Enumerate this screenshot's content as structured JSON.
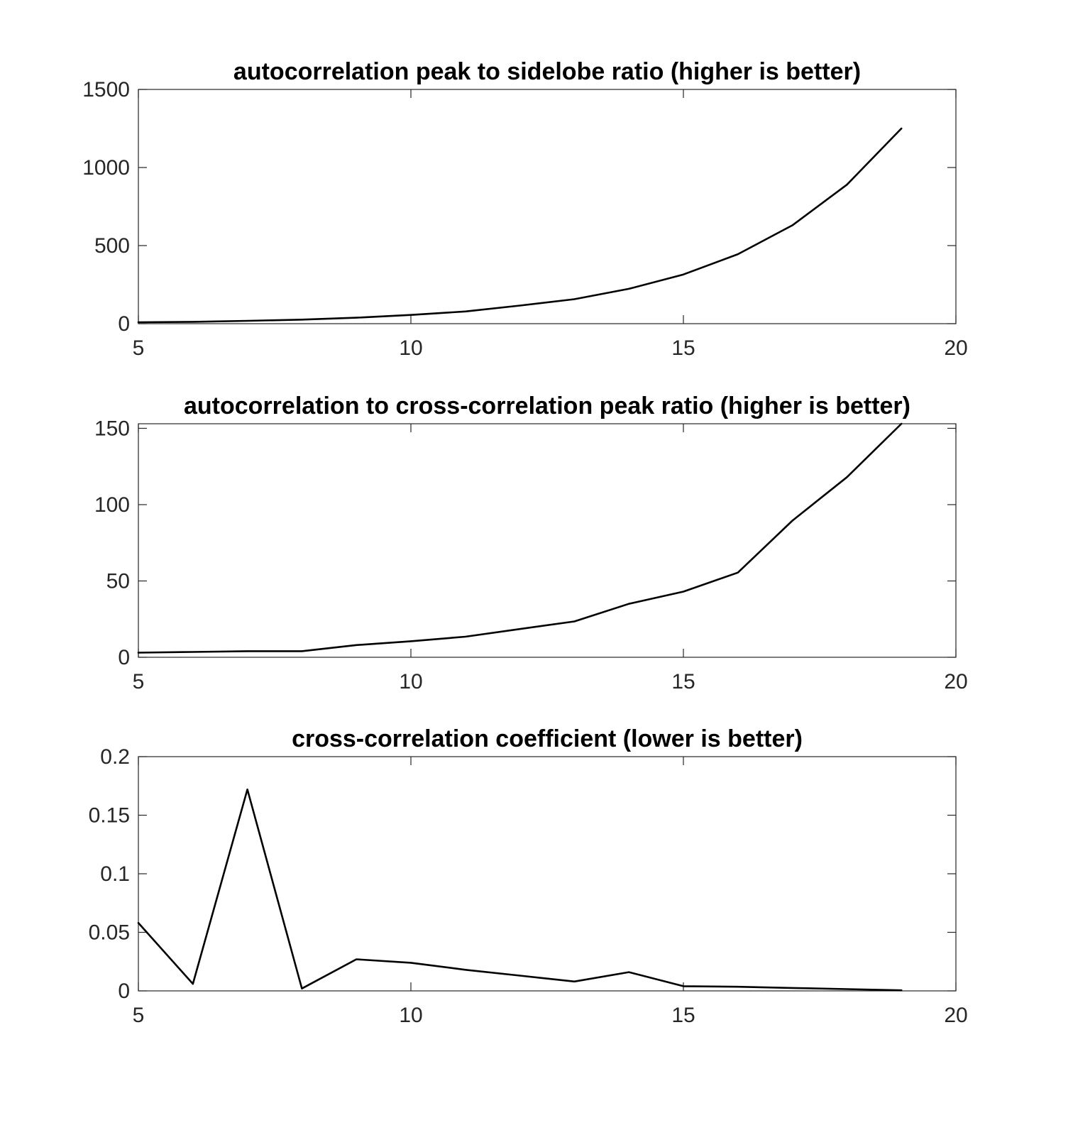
{
  "chart_data": [
    {
      "type": "line",
      "title": "autocorrelation peak to sidelobe ratio (higher is better)",
      "xlabel": "",
      "ylabel": "",
      "xlim": [
        5,
        20
      ],
      "ylim": [
        0,
        1500
      ],
      "xticks": [
        5,
        10,
        15,
        20
      ],
      "xtick_labels": [
        "5",
        "10",
        "15",
        "20"
      ],
      "yticks": [
        0,
        500,
        1000,
        1500
      ],
      "ytick_labels": [
        "0",
        "500",
        "1000",
        "1500"
      ],
      "grid": false,
      "line_color": "#000000",
      "series": [
        {
          "x": [
            5,
            6,
            7,
            8,
            9,
            10,
            11,
            12,
            13,
            14,
            15,
            16,
            17,
            18,
            19
          ],
          "values": [
            9,
            12,
            18,
            26,
            38,
            56,
            78,
            116,
            157,
            223,
            315,
            445,
            630,
            890,
            1250
          ]
        }
      ]
    },
    {
      "type": "line",
      "title": "autocorrelation to cross-correlation peak ratio (higher is better)",
      "xlabel": "",
      "ylabel": "",
      "xlim": [
        5,
        20
      ],
      "ylim": [
        0,
        153
      ],
      "xticks": [
        5,
        10,
        15,
        20
      ],
      "xtick_labels": [
        "5",
        "10",
        "15",
        "20"
      ],
      "yticks": [
        0,
        50,
        100,
        150
      ],
      "ytick_labels": [
        "0",
        "50",
        "100",
        "150"
      ],
      "grid": false,
      "line_color": "#000000",
      "series": [
        {
          "x": [
            5,
            6,
            7,
            8,
            9,
            10,
            11,
            12,
            13,
            14,
            15,
            16,
            17,
            18,
            19
          ],
          "values": [
            3,
            3.5,
            4,
            4,
            8,
            10.5,
            13.5,
            18.5,
            23.5,
            35,
            43,
            55.5,
            89.5,
            118,
            153
          ]
        }
      ]
    },
    {
      "type": "line",
      "title": "cross-correlation coefficient (lower is better)",
      "xlabel": "",
      "ylabel": "",
      "xlim": [
        5,
        20
      ],
      "ylim": [
        0,
        0.2
      ],
      "xticks": [
        5,
        10,
        15,
        20
      ],
      "xtick_labels": [
        "5",
        "10",
        "15",
        "20"
      ],
      "yticks": [
        0,
        0.05,
        0.1,
        0.15,
        0.2
      ],
      "ytick_labels": [
        "0",
        "0.05",
        "0.1",
        "0.15",
        "0.2"
      ],
      "grid": false,
      "line_color": "#000000",
      "series": [
        {
          "x": [
            5,
            6,
            7,
            8,
            9,
            10,
            11,
            12,
            13,
            14,
            15,
            16,
            17,
            18,
            19
          ],
          "values": [
            0.058,
            0.006,
            0.172,
            0.002,
            0.027,
            0.024,
            0.018,
            0.013,
            0.008,
            0.016,
            0.004,
            0.0035,
            0.0025,
            0.0015,
            0.0005
          ]
        }
      ]
    }
  ]
}
